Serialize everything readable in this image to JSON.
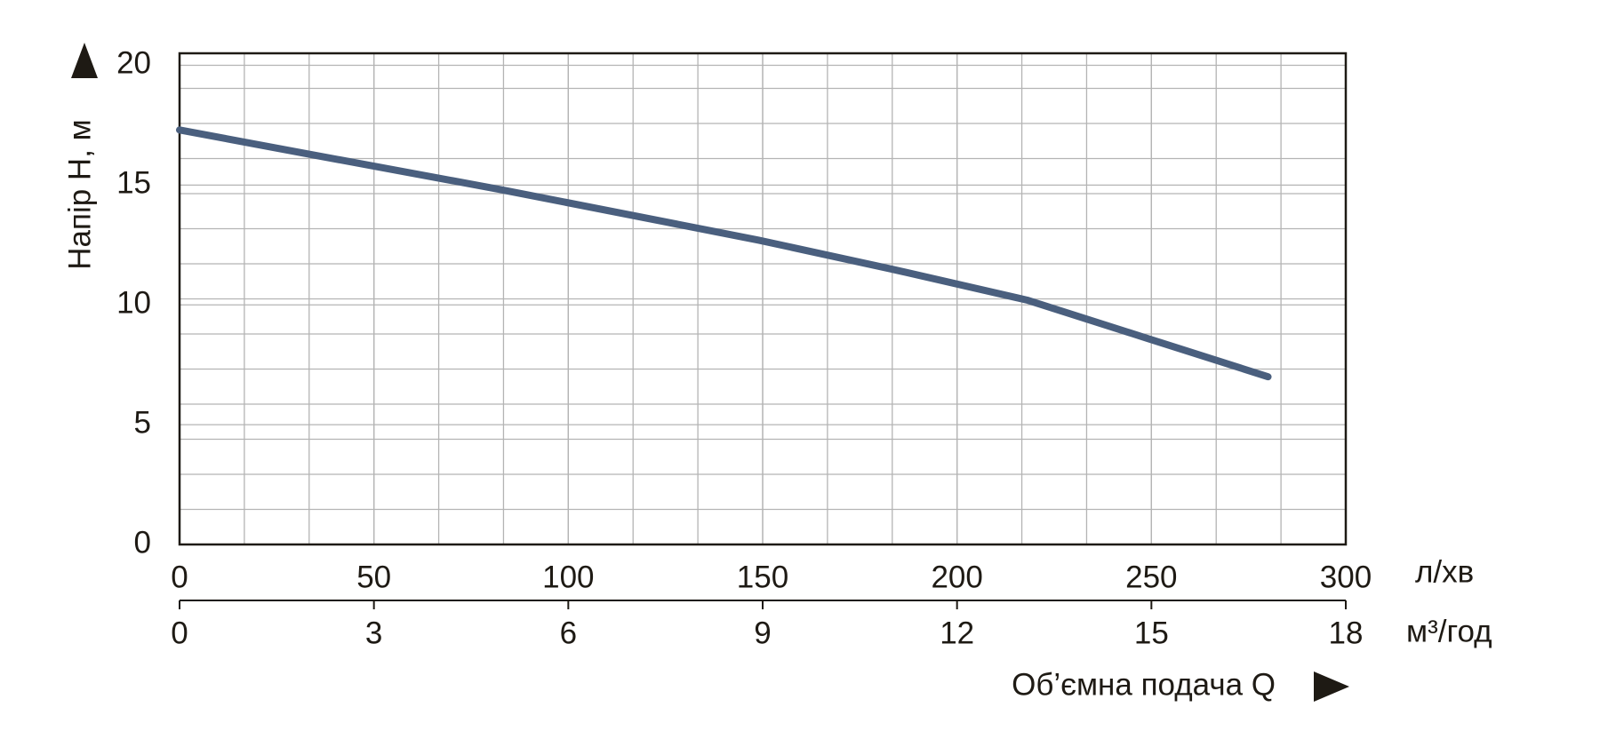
{
  "chart_data": {
    "type": "line",
    "y_label": "Напір H, м",
    "x_label": "Об’ємна подача Q",
    "x_unit": "л/хв",
    "x2_unit": "м³/год",
    "x": [
      0,
      33,
      83,
      149,
      183,
      218,
      249,
      280
    ],
    "series": [
      {
        "color": "#4a5f7e",
        "values": [
          17.3,
          16.3,
          14.8,
          12.7,
          11.5,
          10.2,
          8.6,
          7.0
        ]
      }
    ],
    "xlim": [
      0,
      300
    ],
    "xticks": [
      0,
      50,
      100,
      150,
      200,
      250,
      300
    ],
    "x2lim": [
      0,
      18
    ],
    "x2ticks": [
      0,
      3,
      6,
      9,
      12,
      15,
      18
    ],
    "ylim": [
      0,
      20.5
    ],
    "yticks": [
      0,
      5,
      10,
      15,
      20
    ],
    "grid": true
  }
}
